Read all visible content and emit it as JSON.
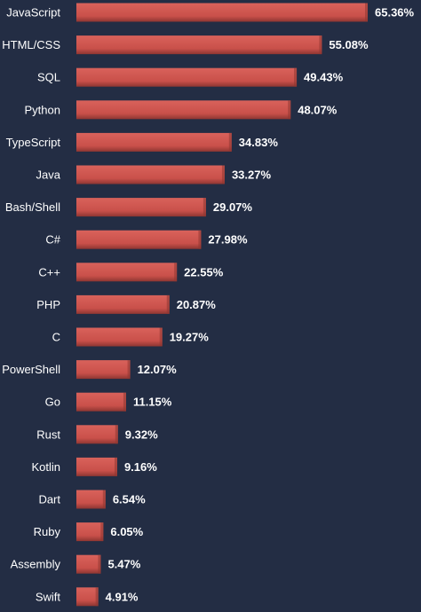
{
  "chart_data": {
    "type": "bar",
    "orientation": "horizontal",
    "title": "",
    "xlabel": "",
    "ylabel": "",
    "categories": [
      "JavaScript",
      "HTML/CSS",
      "SQL",
      "Python",
      "TypeScript",
      "Java",
      "Bash/Shell",
      "C#",
      "C++",
      "PHP",
      "C",
      "PowerShell",
      "Go",
      "Rust",
      "Kotlin",
      "Dart",
      "Ruby",
      "Assembly",
      "Swift"
    ],
    "values": [
      65.36,
      55.08,
      49.43,
      48.07,
      34.83,
      33.27,
      29.07,
      27.98,
      22.55,
      20.87,
      19.27,
      12.07,
      11.15,
      9.32,
      9.16,
      6.54,
      6.05,
      5.47,
      4.91
    ],
    "value_labels": [
      "65.36%",
      "55.08%",
      "49.43%",
      "48.07%",
      "34.83%",
      "33.27%",
      "29.07%",
      "27.98%",
      "22.55%",
      "20.87%",
      "19.27%",
      "12.07%",
      "11.15%",
      "9.32%",
      "9.16%",
      "6.54%",
      "6.05%",
      "5.47%",
      "4.91%"
    ],
    "xlim": [
      0,
      65.36
    ],
    "grid": false,
    "legend": "none"
  },
  "colors": {
    "background": "#232d44",
    "bar": "#c9504a",
    "bar_highlight": "#d9625b",
    "bar_shade": "#8e3632",
    "text": "#ffffff"
  }
}
